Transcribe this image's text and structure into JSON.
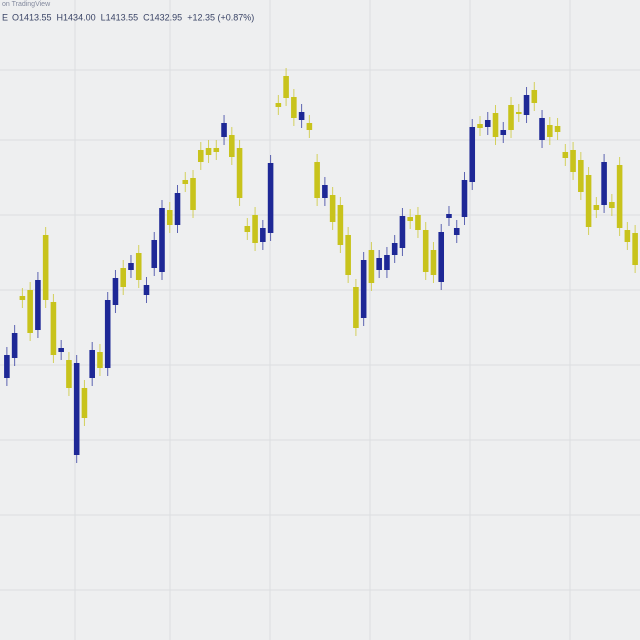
{
  "chart_data": {
    "type": "candlestick",
    "source_label": "on TradingView",
    "symbol_label": "E",
    "ohlc_legend": [
      "O1413.55",
      "H1434.00",
      "L1413.55",
      "C1432.95",
      "+12.35 (+0.87%)"
    ],
    "up_color": "#1e2896",
    "down_color": "#c8c31c",
    "ylim": [
      0,
      640
    ],
    "open": [
      262,
      282,
      344,
      350,
      310,
      405,
      338,
      288,
      280,
      185,
      252,
      262,
      288,
      272,
      335,
      372,
      370,
      387,
      345,
      372,
      368,
      430,
      415,
      460,
      462,
      490,
      492,
      492,
      503,
      505,
      492,
      414,
      425,
      398,
      407,
      537,
      564,
      543,
      520,
      517,
      478,
      442,
      445,
      435,
      405,
      353,
      322,
      390,
      370,
      370,
      385,
      392,
      423,
      425,
      410,
      390,
      358,
      422,
      405,
      423,
      458,
      516,
      513,
      527,
      505,
      535,
      528,
      525,
      550,
      500,
      515,
      514,
      488,
      490,
      480,
      465,
      435,
      435,
      438,
      475,
      410,
      407
    ],
    "high": [
      293,
      315,
      352,
      358,
      368,
      413,
      346,
      300,
      288,
      285,
      260,
      298,
      296,
      348,
      370,
      380,
      385,
      395,
      363,
      408,
      440,
      438,
      455,
      468,
      470,
      498,
      500,
      500,
      525,
      513,
      500,
      422,
      433,
      420,
      485,
      545,
      572,
      551,
      536,
      525,
      486,
      463,
      453,
      443,
      413,
      361,
      388,
      398,
      390,
      393,
      405,
      432,
      431,
      433,
      418,
      398,
      416,
      434,
      420,
      468,
      521,
      524,
      528,
      535,
      518,
      543,
      536,
      553,
      558,
      530,
      523,
      522,
      496,
      498,
      488,
      473,
      443,
      486,
      446,
      483,
      418,
      415
    ],
    "low": [
      254,
      274,
      332,
      299,
      302,
      332,
      277,
      280,
      244,
      177,
      214,
      254,
      264,
      264,
      327,
      345,
      362,
      352,
      337,
      364,
      360,
      407,
      407,
      448,
      422,
      470,
      477,
      480,
      495,
      475,
      434,
      400,
      389,
      390,
      399,
      525,
      534,
      514,
      512,
      502,
      434,
      434,
      410,
      387,
      357,
      304,
      314,
      349,
      362,
      362,
      377,
      384,
      411,
      402,
      360,
      357,
      350,
      414,
      397,
      415,
      450,
      504,
      505,
      495,
      497,
      502,
      518,
      517,
      529,
      492,
      495,
      500,
      474,
      460,
      440,
      405,
      422,
      427,
      424,
      404,
      390,
      367
    ],
    "close": [
      285,
      307,
      340,
      307,
      360,
      340,
      285,
      292,
      252,
      277,
      222,
      290,
      272,
      340,
      362,
      353,
      377,
      360,
      355,
      400,
      432,
      415,
      447,
      456,
      430,
      478,
      485,
      488,
      517,
      483,
      442,
      408,
      397,
      412,
      477,
      533,
      542,
      522,
      528,
      510,
      442,
      455,
      418,
      395,
      365,
      312,
      380,
      357,
      382,
      385,
      397,
      424,
      419,
      410,
      368,
      365,
      408,
      426,
      412,
      460,
      513,
      512,
      520,
      503,
      510,
      510,
      526,
      545,
      537,
      522,
      503,
      508,
      482,
      468,
      448,
      413,
      430,
      478,
      432,
      412,
      398,
      375
    ]
  }
}
